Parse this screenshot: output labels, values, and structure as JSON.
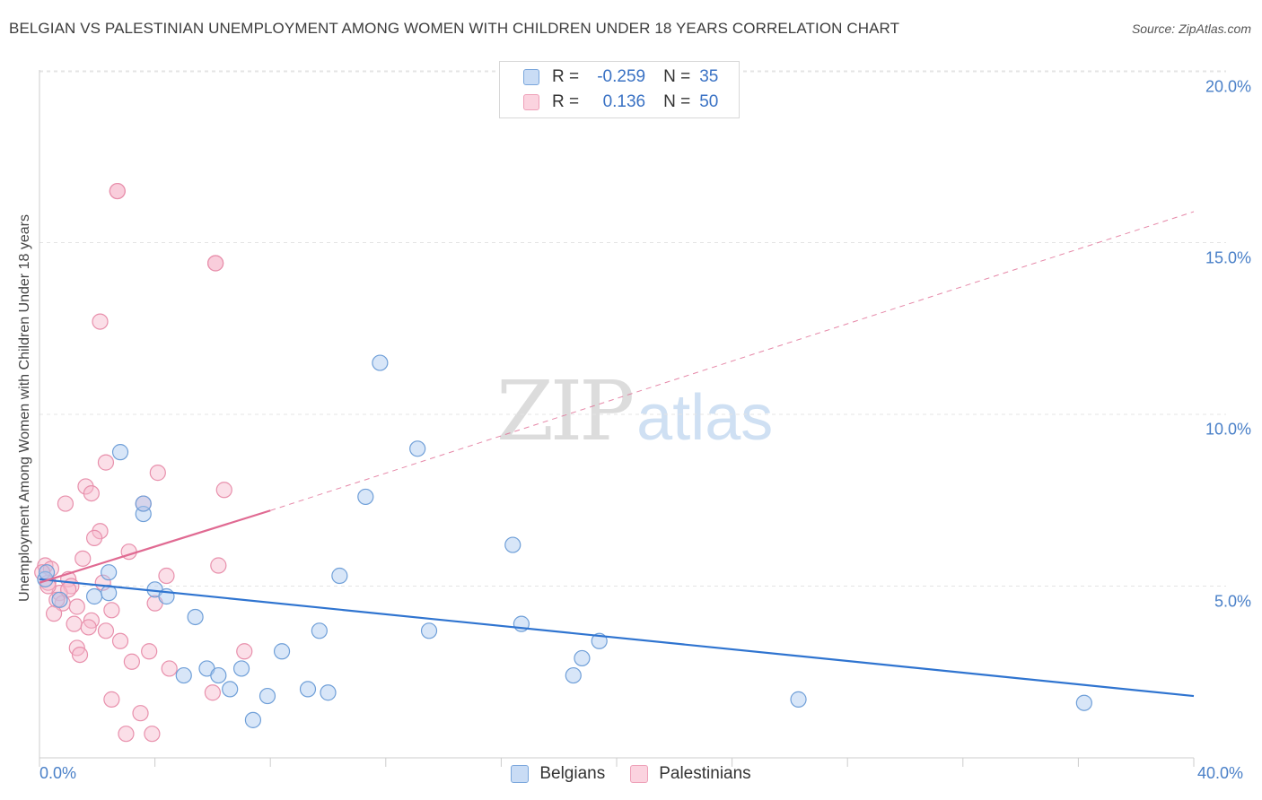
{
  "title": "BELGIAN VS PALESTINIAN UNEMPLOYMENT AMONG WOMEN WITH CHILDREN UNDER 18 YEARS CORRELATION CHART",
  "source": "Source: ZipAtlas.com",
  "watermark": {
    "zip": "ZIP",
    "atlas": "atlas"
  },
  "legend_top": {
    "rows": [
      {
        "r_label": "R =",
        "r_value": "-0.259",
        "n_label": "N =",
        "n_value": "35",
        "color": "#a8c8f0"
      },
      {
        "r_label": "R =",
        "r_value": "0.136",
        "n_label": "N =",
        "n_value": "50",
        "color": "#f6b8cc"
      }
    ]
  },
  "legend_bottom": {
    "items": [
      {
        "label": "Belgians"
      },
      {
        "label": "Palestinians"
      }
    ]
  },
  "axes": {
    "ylabel": "Unemployment Among Women with Children Under 18 years",
    "yticks": [
      "20.0%",
      "15.0%",
      "10.0%",
      "5.0%"
    ],
    "xticks": [
      "0.0%",
      "40.0%"
    ]
  },
  "colors": {
    "belgian_fill": "#a8c8f0",
    "belgian_stroke": "#6f9fd8",
    "belgian_line": "#2f74d0",
    "palestinian_fill": "#f6b8cc",
    "palestinian_stroke": "#e890ac",
    "palestinian_line": "#e06a92",
    "axis_text": "#4a80c8",
    "grid": "#e4e4e4"
  },
  "chart_data": {
    "type": "scatter",
    "title": "BELGIAN VS PALESTINIAN UNEMPLOYMENT AMONG WOMEN WITH CHILDREN UNDER 18 YEARS CORRELATION CHART",
    "xlabel": "",
    "ylabel": "Unemployment Among Women with Children Under 18 years",
    "xlim": [
      0,
      40
    ],
    "ylim": [
      0,
      20.5
    ],
    "grid": true,
    "legend_position": "bottom",
    "series": [
      {
        "name": "Belgians",
        "r": -0.259,
        "n": 35,
        "trend": {
          "x": [
            0,
            40
          ],
          "y": [
            5.2,
            1.8
          ],
          "style": "solid"
        },
        "points": [
          [
            0.2,
            5.2
          ],
          [
            0.7,
            4.6
          ],
          [
            2.4,
            5.4
          ],
          [
            2.4,
            4.8
          ],
          [
            2.8,
            8.9
          ],
          [
            3.6,
            7.1
          ],
          [
            3.6,
            7.4
          ],
          [
            4.0,
            4.9
          ],
          [
            4.4,
            4.7
          ],
          [
            5.4,
            4.1
          ],
          [
            5.0,
            2.4
          ],
          [
            5.8,
            2.6
          ],
          [
            6.2,
            2.4
          ],
          [
            6.6,
            2.0
          ],
          [
            7.0,
            2.6
          ],
          [
            7.4,
            1.1
          ],
          [
            7.9,
            1.8
          ],
          [
            8.4,
            3.1
          ],
          [
            9.3,
            2.0
          ],
          [
            9.7,
            3.7
          ],
          [
            10.0,
            1.9
          ],
          [
            10.4,
            5.3
          ],
          [
            11.8,
            11.5
          ],
          [
            13.1,
            9.0
          ],
          [
            13.5,
            3.7
          ],
          [
            11.3,
            7.6
          ],
          [
            16.4,
            6.2
          ],
          [
            16.7,
            3.9
          ],
          [
            18.5,
            2.4
          ],
          [
            18.8,
            2.9
          ],
          [
            19.4,
            3.4
          ],
          [
            26.3,
            1.7
          ],
          [
            36.2,
            1.6
          ],
          [
            1.9,
            4.7
          ],
          [
            0.25,
            5.4
          ]
        ]
      },
      {
        "name": "Palestinians",
        "r": 0.136,
        "n": 50,
        "trend": {
          "x": [
            0,
            8
          ],
          "y": [
            5.1,
            7.2
          ],
          "style": "solid",
          "extended": {
            "x": [
              8,
              40
            ],
            "y": [
              7.2,
              15.9
            ],
            "style": "dashed"
          }
        },
        "points": [
          [
            2.7,
            16.5
          ],
          [
            2.7,
            16.5
          ],
          [
            6.1,
            14.4
          ],
          [
            6.1,
            14.4
          ],
          [
            2.1,
            12.7
          ],
          [
            2.3,
            8.6
          ],
          [
            4.1,
            8.3
          ],
          [
            1.6,
            7.9
          ],
          [
            0.9,
            7.4
          ],
          [
            1.8,
            7.7
          ],
          [
            6.4,
            7.8
          ],
          [
            3.6,
            7.4
          ],
          [
            2.1,
            6.6
          ],
          [
            1.9,
            6.4
          ],
          [
            3.1,
            6.0
          ],
          [
            1.5,
            5.8
          ],
          [
            0.2,
            5.6
          ],
          [
            0.4,
            5.5
          ],
          [
            4.4,
            5.3
          ],
          [
            6.2,
            5.6
          ],
          [
            2.2,
            5.1
          ],
          [
            1.0,
            5.2
          ],
          [
            1.1,
            5.0
          ],
          [
            0.3,
            5.1
          ],
          [
            0.7,
            4.8
          ],
          [
            0.8,
            4.5
          ],
          [
            0.6,
            4.6
          ],
          [
            1.3,
            4.4
          ],
          [
            0.5,
            4.2
          ],
          [
            4.0,
            4.5
          ],
          [
            2.5,
            4.3
          ],
          [
            1.2,
            3.9
          ],
          [
            1.8,
            4.0
          ],
          [
            1.7,
            3.8
          ],
          [
            2.3,
            3.7
          ],
          [
            1.3,
            3.2
          ],
          [
            1.4,
            3.0
          ],
          [
            2.8,
            3.4
          ],
          [
            3.8,
            3.1
          ],
          [
            3.2,
            2.8
          ],
          [
            4.5,
            2.6
          ],
          [
            7.1,
            3.1
          ],
          [
            6.0,
            1.9
          ],
          [
            2.5,
            1.7
          ],
          [
            3.5,
            1.3
          ],
          [
            3.0,
            0.7
          ],
          [
            3.9,
            0.7
          ],
          [
            0.1,
            5.4
          ],
          [
            0.3,
            5.0
          ],
          [
            1.0,
            4.9
          ]
        ]
      }
    ]
  }
}
